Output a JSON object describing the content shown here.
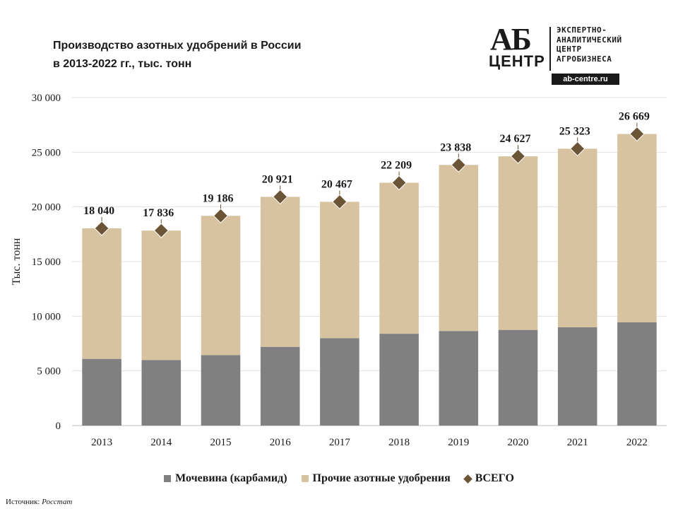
{
  "title": {
    "line1": "Производство  азотных удобрений в России",
    "line2": "в 2013-2022 гг., тыс. тонн"
  },
  "logo": {
    "letters": "АБ",
    "word": "ЦЕНТР",
    "lines": [
      "ЭКСПЕРТНО-",
      "АНАЛИТИЧЕСКИЙ",
      "ЦЕНТР",
      "АГРОБИЗНЕСА"
    ],
    "url": "ab-centre.ru"
  },
  "source": {
    "label": "Источник:",
    "value": "Росстат"
  },
  "chart_data": {
    "type": "bar",
    "stacked": true,
    "ylabel": "Тыс. тонн",
    "ylim": [
      0,
      30000
    ],
    "yticks": [
      0,
      5000,
      10000,
      15000,
      20000,
      25000,
      30000
    ],
    "ytick_labels": [
      "0",
      "5 000",
      "10 000",
      "15 000",
      "20 000",
      "25 000",
      "30 000"
    ],
    "grid": true,
    "legend_position": "bottom",
    "categories": [
      "2013",
      "2014",
      "2015",
      "2016",
      "2017",
      "2018",
      "2019",
      "2020",
      "2021",
      "2022"
    ],
    "series": [
      {
        "name": "Мочевина (карбамид)",
        "color": "#808080",
        "values": [
          6100,
          6000,
          6450,
          7200,
          8000,
          8400,
          8650,
          8750,
          9000,
          9450
        ]
      },
      {
        "name": "Прочие азотные удобрения",
        "color": "#d8c3a0",
        "values": [
          11940,
          11836,
          12736,
          13721,
          12467,
          13809,
          15188,
          15877,
          16323,
          17219
        ]
      }
    ],
    "total": {
      "name": "ВСЕГО",
      "color": "#6b5536",
      "values": [
        18040,
        17836,
        19186,
        20921,
        20467,
        22209,
        23838,
        24627,
        25323,
        26669
      ],
      "labels": [
        "18 040",
        "17 836",
        "19 186",
        "20 921",
        "20 467",
        "22 209",
        "23 838",
        "24 627",
        "25 323",
        "26 669"
      ]
    }
  }
}
